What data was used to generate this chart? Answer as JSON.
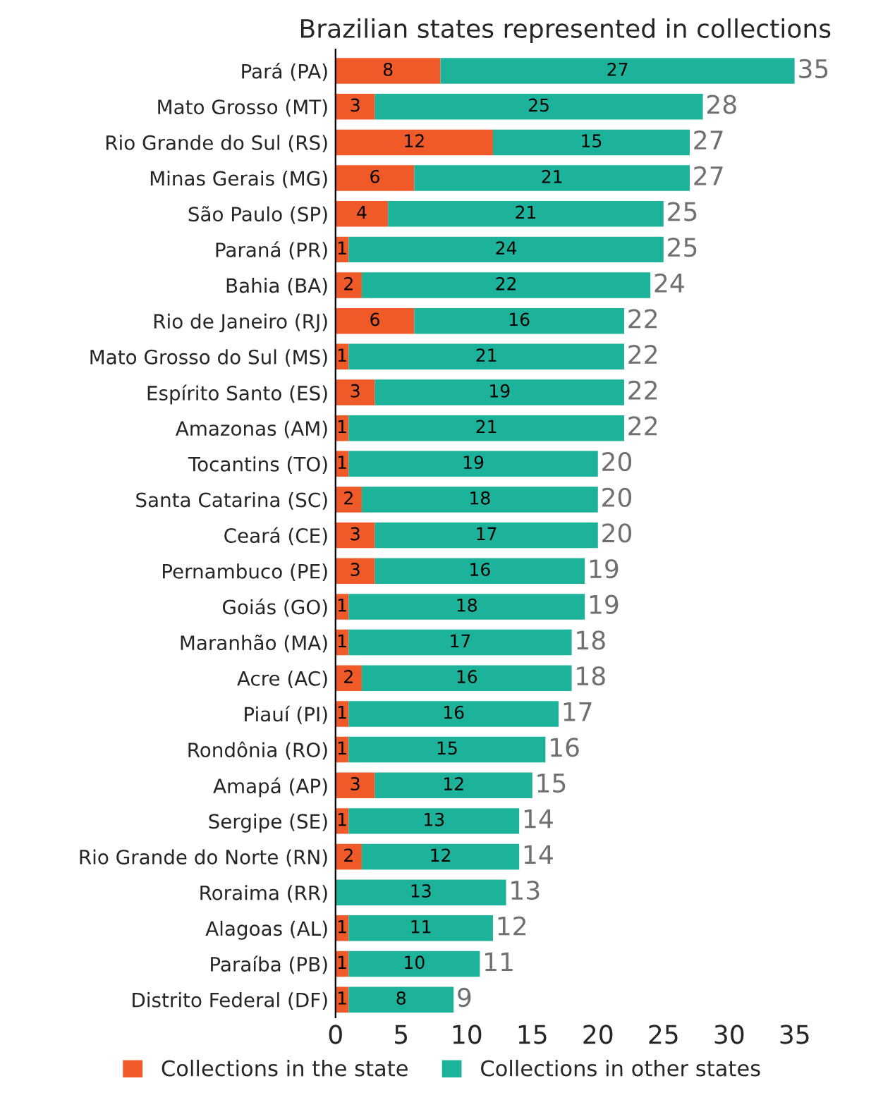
{
  "chart_data": {
    "type": "bar",
    "orientation": "horizontal",
    "stacked": true,
    "title": "Brazilian states represented in collections",
    "categories": [
      "Pará (PA)",
      "Mato Grosso (MT)",
      "Rio Grande do Sul (RS)",
      "Minas Gerais (MG)",
      "São Paulo (SP)",
      "Paraná (PR)",
      "Bahia (BA)",
      "Rio de Janeiro (RJ)",
      "Mato Grosso do Sul (MS)",
      "Espírito Santo (ES)",
      "Amazonas (AM)",
      "Tocantins (TO)",
      "Santa Catarina (SC)",
      "Ceará (CE)",
      "Pernambuco (PE)",
      "Goiás (GO)",
      "Maranhão (MA)",
      "Acre (AC)",
      "Piauí (PI)",
      "Rondônia (RO)",
      "Amapá (AP)",
      "Sergipe (SE)",
      "Rio Grande do Norte (RN)",
      "Roraima (RR)",
      "Alagoas (AL)",
      "Paraíba (PB)",
      "Distrito Federal (DF)"
    ],
    "series": [
      {
        "name": "Collections in the state",
        "color": "#f05a28",
        "values": [
          8,
          3,
          12,
          6,
          4,
          1,
          2,
          6,
          1,
          3,
          1,
          1,
          2,
          3,
          3,
          1,
          1,
          2,
          1,
          1,
          3,
          1,
          2,
          null,
          1,
          1,
          1
        ]
      },
      {
        "name": "Collections in other states",
        "color": "#1db39b",
        "values": [
          27,
          25,
          15,
          21,
          21,
          24,
          22,
          16,
          21,
          19,
          21,
          19,
          18,
          17,
          16,
          18,
          17,
          16,
          16,
          15,
          12,
          13,
          12,
          13,
          11,
          10,
          8
        ]
      }
    ],
    "totals": [
      "35",
      "28",
      "27",
      "27",
      "25",
      "25",
      "24",
      "22",
      "22",
      "22",
      "22",
      "20",
      "20",
      "20",
      "19",
      "19",
      "18",
      "18",
      "17",
      "16",
      "15",
      "14",
      "14",
      "13",
      "12",
      "11",
      "9"
    ],
    "data_labels": true,
    "xlim": [
      0,
      35
    ],
    "xticks": [
      0,
      5,
      10,
      15,
      20,
      25,
      30,
      35
    ],
    "grid": false,
    "legend": "bottom"
  }
}
